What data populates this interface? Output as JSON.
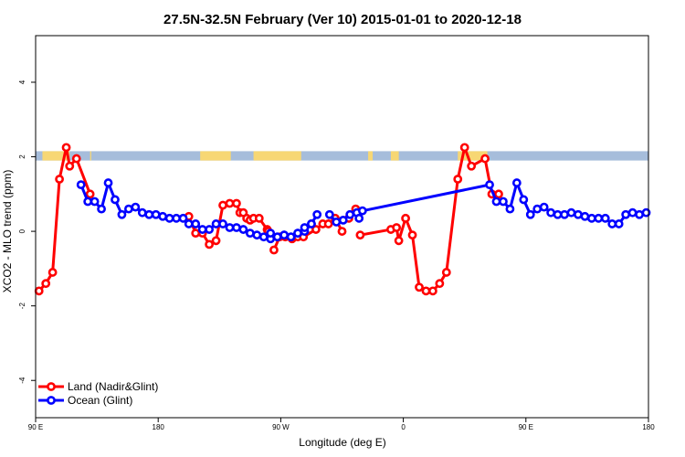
{
  "chart_data": {
    "type": "line",
    "title": "27.5N-32.5N February (Ver 10)   2015-01-01 to 2020-12-18",
    "xlabel": "Longitude (deg E)",
    "ylabel": "XCO2 - MLO trend (ppm)",
    "xlim": [
      -90,
      180
    ],
    "ylim": [
      -5,
      5.25
    ],
    "x_ticks": [
      -90,
      -36,
      18,
      72,
      126,
      180
    ],
    "x_tick_labels": [
      "90 E",
      "180",
      "90 W",
      "0",
      "90 E",
      "180"
    ],
    "y_ticks": [
      -4,
      -2,
      0,
      2,
      4
    ],
    "y_tick_labels": [
      "-4",
      "-2",
      "0",
      "2",
      "4"
    ],
    "legend_position": "bottom-left",
    "surface_band": {
      "y_range": [
        1.9,
        2.15
      ],
      "ocean_color": "#a6bddb",
      "land_color": "#f7d774",
      "land_segments": [
        [
          -87,
          -75
        ],
        [
          -66,
          -65.5
        ],
        [
          -17.5,
          -4
        ],
        [
          6,
          27
        ],
        [
          56.5,
          58.5
        ],
        [
          66.5,
          70
        ],
        [
          96,
          109
        ]
      ]
    },
    "series": [
      {
        "name": "Land (Nadir&Glint)",
        "color": "#ff0000",
        "x": [
          -88.5,
          -85.5,
          -82.5,
          -79.5,
          -76.5,
          -75,
          -72,
          -66,
          -22.5,
          -19.5,
          -16.5,
          -13.5,
          -10.5,
          -7.5,
          -4.5,
          -1.5,
          0,
          1.5,
          3,
          4.5,
          6,
          8.5,
          12,
          12.5,
          15,
          17.5,
          20,
          23,
          25.5,
          28,
          33.5,
          36.5,
          39,
          42,
          45,
          48,
          51,
          53,
          66.5,
          69,
          70,
          73,
          76,
          79,
          82,
          85,
          88,
          91,
          96,
          99,
          102,
          108,
          111,
          114
        ],
        "y": [
          -1.6,
          -1.4,
          -1.1,
          1.4,
          2.25,
          1.75,
          1.95,
          1.0,
          0.4,
          -0.05,
          -0.05,
          -0.35,
          -0.25,
          0.7,
          0.75,
          0.75,
          0.5,
          0.5,
          0.35,
          0.3,
          0.35,
          0.35,
          0.05,
          0.0,
          -0.5,
          -0.15,
          -0.15,
          -0.2,
          -0.15,
          -0.15,
          0.05,
          0.2,
          0.2,
          0.35,
          0.0,
          0.35,
          0.6,
          -0.1,
          0.05,
          0.1,
          -0.25,
          0.35,
          -0.1,
          -1.5,
          -1.6,
          -1.6,
          -1.4,
          -1.1,
          1.4,
          2.25,
          1.75,
          1.95,
          1.0,
          1.0
        ],
        "gaps_after_index": [
          7,
          9,
          13,
          23,
          34,
          36
        ]
      },
      {
        "name": "Ocean (Glint)",
        "color": "#0000ff",
        "x": [
          -70,
          -67,
          -64,
          -61,
          -58,
          -55,
          -52,
          -49,
          -46,
          -43,
          -40,
          -37,
          -34,
          -31,
          -28,
          -25,
          -22.5,
          -19.5,
          -16.5,
          -13.5,
          -10.5,
          -7.5,
          -4.5,
          -1.5,
          1.5,
          4.5,
          7.5,
          10.5,
          13.5,
          16.5,
          19.5,
          22.5,
          25.5,
          28.5,
          31.5,
          34,
          13.5,
          16.5,
          19.5,
          22.5,
          25.5,
          28.5,
          31.5,
          39.5,
          42.5,
          45.5,
          48.5,
          51.5,
          52.5,
          54,
          110,
          113,
          116,
          119,
          122,
          125,
          128,
          131,
          134,
          137,
          140,
          143,
          146,
          149,
          152,
          155,
          158,
          161,
          164,
          167,
          170,
          173,
          176,
          179
        ],
        "y": [
          1.25,
          0.8,
          0.8,
          0.6,
          1.3,
          0.85,
          0.45,
          0.6,
          0.65,
          0.5,
          0.45,
          0.45,
          0.4,
          0.35,
          0.35,
          0.35,
          0.2,
          0.2,
          0.05,
          0.05,
          0.2,
          0.2,
          0.1,
          0.1,
          0.05,
          -0.05,
          -0.1,
          -0.15,
          -0.2,
          -0.15,
          -0.1,
          -0.15,
          -0.05,
          0.0,
          0.2,
          0.45,
          -0.05,
          -0.15,
          -0.1,
          -0.15,
          -0.05,
          0.1,
          0.2,
          0.45,
          0.25,
          0.3,
          0.45,
          0.5,
          0.35,
          0.55,
          1.25,
          0.8,
          0.8,
          0.6,
          1.3,
          0.85,
          0.45,
          0.6,
          0.65,
          0.5,
          0.45,
          0.45,
          0.5,
          0.45,
          0.4,
          0.35,
          0.35,
          0.35,
          0.2,
          0.2,
          0.45,
          0.5,
          0.45,
          0.5
        ],
        "gaps_after_index": [
          35,
          42
        ]
      }
    ]
  }
}
